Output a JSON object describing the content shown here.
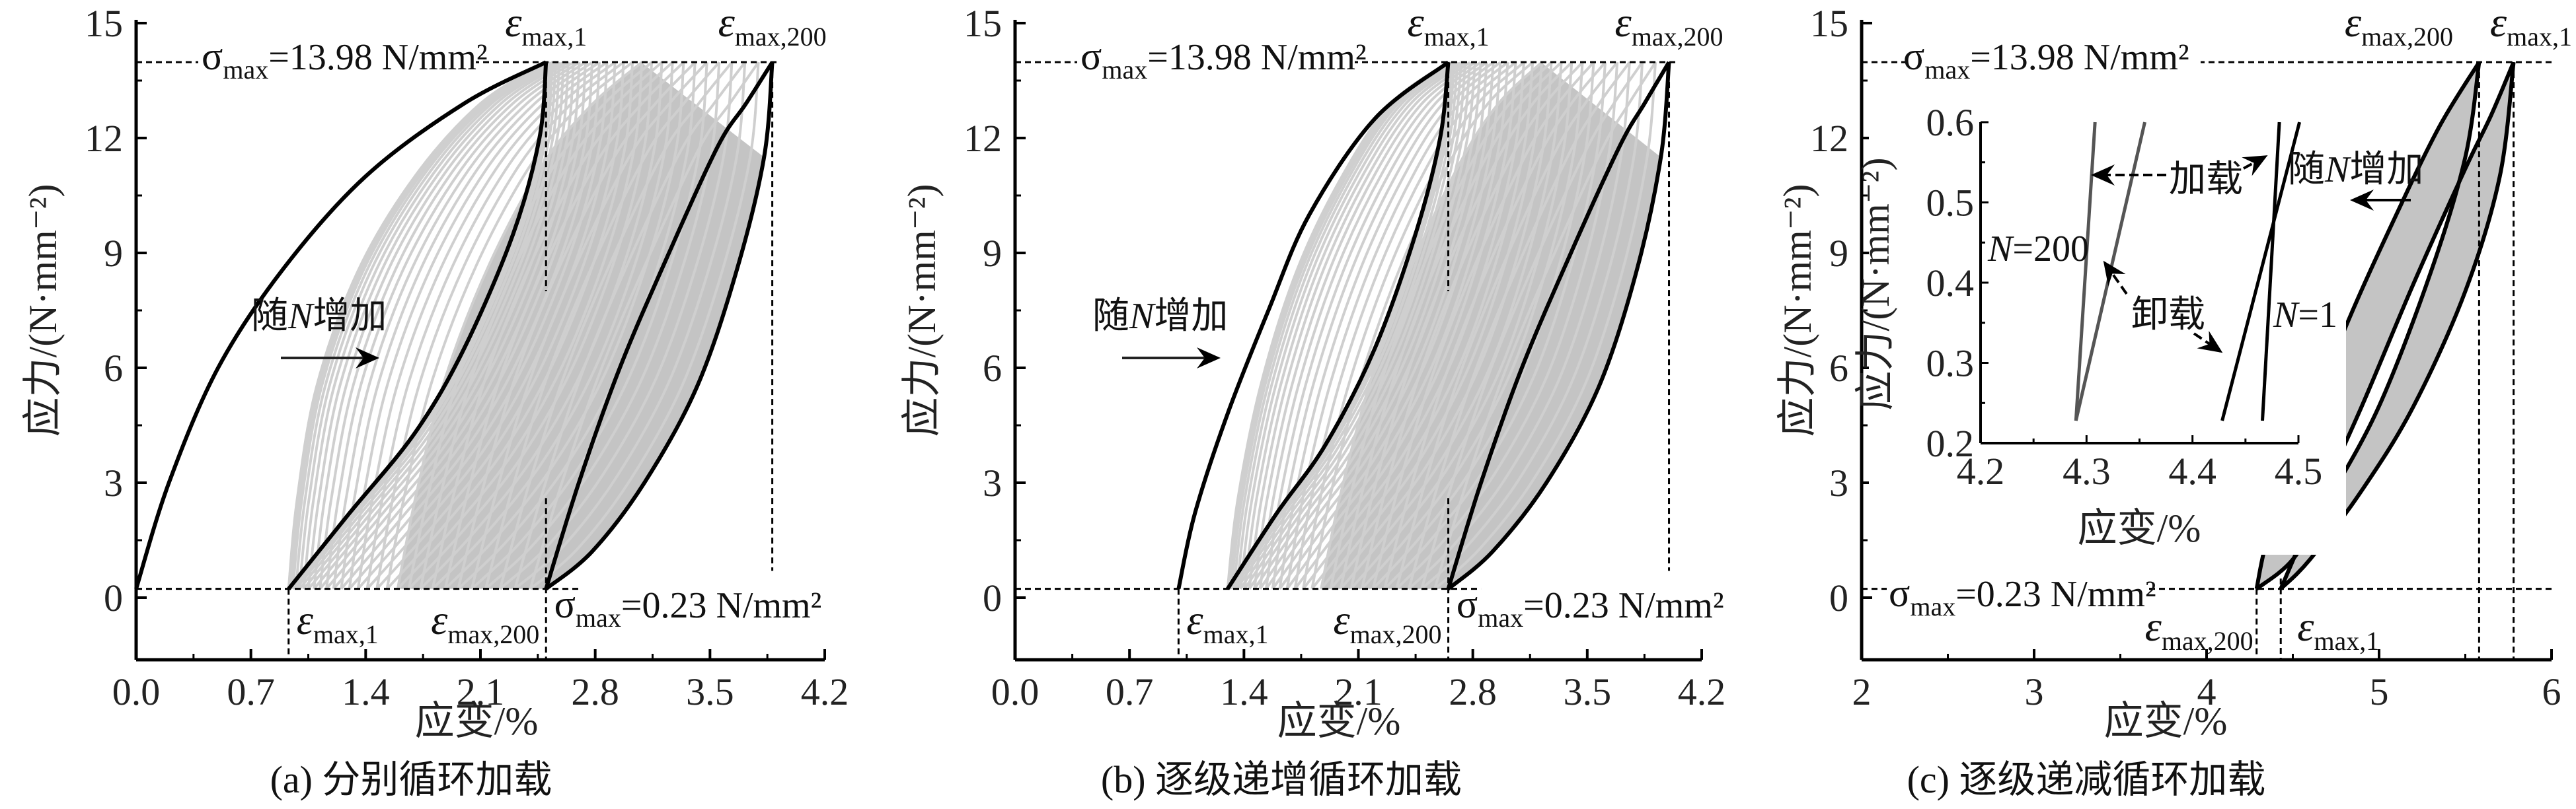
{
  "chart_data": [
    {
      "type": "line",
      "id": "a",
      "caption": "(a) 分别循环加载",
      "xlabel": "应变/%",
      "ylabel": "应力/(N·mm⁻²)",
      "xlim": [
        0,
        4.2
      ],
      "ylim": [
        -1.6,
        15
      ],
      "xticks": [
        "0.0",
        "0.7",
        "1.4",
        "2.1",
        "2.8",
        "3.5",
        "4.2"
      ],
      "yticks": [
        "0",
        "3",
        "6",
        "9",
        "12",
        "15"
      ],
      "sigma_top": {
        "sym": "σ",
        "sub": "max",
        "text": "=13.98 N/mm²",
        "value": 13.98
      },
      "sigma_bottom": {
        "sym": "σ",
        "sub": "max",
        "text": "=0.23 N/mm²",
        "value": 0.23
      },
      "eps_labels": [
        {
          "sym": "ε",
          "sub": "max,1"
        },
        {
          "sym": "ε",
          "sub": "max,200"
        },
        {
          "sym": "ε",
          "sub": "max,1"
        },
        {
          "sym": "ε",
          "sub": "max,200"
        }
      ],
      "arrow_text": {
        "pre": "随",
        "n": "N",
        "post": "增加"
      },
      "cycles": 200,
      "series": [
        {
          "name": "load_N1",
          "points": [
            [
              0,
              0.23
            ],
            [
              0.2,
              3
            ],
            [
              0.5,
              6
            ],
            [
              0.9,
              8.6
            ],
            [
              1.4,
              11
            ],
            [
              2.0,
              12.9
            ],
            [
              2.5,
              13.98
            ]
          ]
        },
        {
          "name": "unload_N1",
          "points": [
            [
              2.5,
              13.98
            ],
            [
              2.46,
              12
            ],
            [
              2.3,
              9.5
            ],
            [
              2.0,
              6.5
            ],
            [
              1.7,
              4.3
            ],
            [
              1.3,
              2.2
            ],
            [
              0.93,
              0.23
            ]
          ]
        },
        {
          "name": "reload_N2",
          "points": [
            [
              0.93,
              0.23
            ],
            [
              0.98,
              2.5
            ],
            [
              1.1,
              5.5
            ],
            [
              1.35,
              8.5
            ],
            [
              1.7,
              11
            ],
            [
              2.1,
              12.9
            ],
            [
              2.5,
              13.98
            ]
          ]
        },
        {
          "name": "load_N200",
          "points": [
            [
              2.5,
              0.23
            ],
            [
              2.7,
              3
            ],
            [
              2.95,
              6
            ],
            [
              3.25,
              9
            ],
            [
              3.55,
              11.8
            ],
            [
              3.72,
              12.9
            ],
            [
              3.88,
              13.98
            ]
          ]
        },
        {
          "name": "unload_N200",
          "points": [
            [
              3.88,
              13.98
            ],
            [
              3.83,
              11.5
            ],
            [
              3.66,
              8.5
            ],
            [
              3.42,
              5.5
            ],
            [
              3.1,
              3
            ],
            [
              2.78,
              1.2
            ],
            [
              2.5,
              0.23
            ]
          ]
        }
      ],
      "eps_max_1": [
        0.93,
        2.5
      ],
      "eps_max_200": [
        2.5,
        3.88
      ]
    },
    {
      "type": "line",
      "id": "b",
      "caption": "(b) 逐级递增循环加载",
      "xlabel": "应变/%",
      "ylabel": "应力/(N·mm⁻²)",
      "xlim": [
        0,
        4.2
      ],
      "ylim": [
        -1.6,
        15
      ],
      "xticks": [
        "0.0",
        "0.7",
        "1.4",
        "2.1",
        "2.8",
        "3.5",
        "4.2"
      ],
      "yticks": [
        "0",
        "3",
        "6",
        "9",
        "12",
        "15"
      ],
      "sigma_top": {
        "sym": "σ",
        "sub": "max",
        "text": "=13.98 N/mm²",
        "value": 13.98
      },
      "sigma_bottom": {
        "sym": "σ",
        "sub": "max",
        "text": "=0.23 N/mm²",
        "value": 0.23
      },
      "eps_labels": [
        {
          "sym": "ε",
          "sub": "max,1"
        },
        {
          "sym": "ε",
          "sub": "max,200"
        },
        {
          "sym": "ε",
          "sub": "max,1"
        },
        {
          "sym": "ε",
          "sub": "max,200"
        }
      ],
      "arrow_text": {
        "pre": "随",
        "n": "N",
        "post": "增加"
      },
      "cycles": 200,
      "series": [
        {
          "name": "load_N1",
          "points": [
            [
              1.0,
              0.23
            ],
            [
              1.1,
              2.2
            ],
            [
              1.3,
              4.8
            ],
            [
              1.55,
              7.5
            ],
            [
              1.8,
              10
            ],
            [
              2.2,
              12.5
            ],
            [
              2.65,
              13.98
            ]
          ]
        },
        {
          "name": "unload_N1",
          "points": [
            [
              2.65,
              13.98
            ],
            [
              2.6,
              12
            ],
            [
              2.45,
              9.5
            ],
            [
              2.2,
              6.5
            ],
            [
              1.9,
              4
            ],
            [
              1.6,
              2.2
            ],
            [
              1.3,
              0.23
            ]
          ]
        },
        {
          "name": "reload_N2",
          "points": [
            [
              1.3,
              0.23
            ],
            [
              1.36,
              2.5
            ],
            [
              1.5,
              5.5
            ],
            [
              1.72,
              8.5
            ],
            [
              2.0,
              11
            ],
            [
              2.3,
              12.9
            ],
            [
              2.65,
              13.98
            ]
          ]
        },
        {
          "name": "load_N200",
          "points": [
            [
              2.65,
              0.23
            ],
            [
              2.85,
              3
            ],
            [
              3.1,
              6
            ],
            [
              3.4,
              9
            ],
            [
              3.7,
              11.8
            ],
            [
              3.85,
              12.9
            ],
            [
              4.0,
              13.98
            ]
          ]
        },
        {
          "name": "unload_N200",
          "points": [
            [
              4.0,
              13.98
            ],
            [
              3.95,
              11.5
            ],
            [
              3.8,
              8.5
            ],
            [
              3.57,
              5.5
            ],
            [
              3.25,
              3
            ],
            [
              2.92,
              1.2
            ],
            [
              2.65,
              0.23
            ]
          ]
        }
      ],
      "eps_max_1": [
        1.0,
        2.65
      ],
      "eps_max_200": [
        2.65,
        4.0
      ]
    },
    {
      "type": "line",
      "id": "c",
      "caption": "(c) 逐级递减循环加载",
      "xlabel": "应变/%",
      "ylabel": "应力/(N·mm⁻²)",
      "xlim": [
        2,
        6
      ],
      "ylim": [
        -1.6,
        15
      ],
      "xticks": [
        "2",
        "3",
        "4",
        "5",
        "6"
      ],
      "yticks": [
        "0",
        "3",
        "6",
        "9",
        "12",
        "15"
      ],
      "sigma_top": {
        "sym": "σ",
        "sub": "max",
        "text": "=13.98 N/mm²",
        "value": 13.98
      },
      "sigma_bottom": {
        "sym": "σ",
        "sub": "max",
        "text": "=0.23 N/mm²",
        "value": 0.23
      },
      "eps_labels": [
        {
          "sym": "ε",
          "sub": "max,200"
        },
        {
          "sym": "ε",
          "sub": "max,1"
        },
        {
          "sym": "ε",
          "sub": "max,200"
        },
        {
          "sym": "ε",
          "sub": "max,1"
        }
      ],
      "arrow_text": {
        "pre": "随",
        "n": "N",
        "post": "增加"
      },
      "series": [
        {
          "name": "load_N1",
          "points": [
            [
              4.43,
              0.23
            ],
            [
              4.6,
              2
            ],
            [
              4.9,
              5
            ],
            [
              5.2,
              8.2
            ],
            [
              5.5,
              11.2
            ],
            [
              5.65,
              12.6
            ],
            [
              5.78,
              13.98
            ]
          ]
        },
        {
          "name": "unload_N1",
          "points": [
            [
              5.78,
              13.98
            ],
            [
              5.7,
              11
            ],
            [
              5.5,
              8
            ],
            [
              5.2,
              5
            ],
            [
              4.9,
              2.8
            ],
            [
              4.6,
              1
            ],
            [
              4.43,
              0.23
            ]
          ]
        },
        {
          "name": "load_N200",
          "points": [
            [
              4.29,
              0.23
            ],
            [
              4.35,
              1.5
            ],
            [
              4.5,
              3.5
            ],
            [
              4.8,
              7
            ],
            [
              5.1,
              10
            ],
            [
              5.35,
              12.3
            ],
            [
              5.58,
              13.98
            ]
          ]
        },
        {
          "name": "unload_N200",
          "points": [
            [
              5.58,
              13.98
            ],
            [
              5.5,
              11.5
            ],
            [
              5.3,
              8.5
            ],
            [
              5.0,
              5
            ],
            [
              4.7,
              2.5
            ],
            [
              4.5,
              1
            ],
            [
              4.29,
              0.23
            ]
          ]
        }
      ],
      "eps_max_1": [
        4.43,
        5.78
      ],
      "eps_max_200": [
        4.29,
        5.58
      ],
      "inset": {
        "xlabel": "应变/%",
        "ylabel": "应力/(N·mm⁻²)",
        "xlim": [
          4.2,
          4.5
        ],
        "ylim": [
          0.2,
          0.6
        ],
        "xticks": [
          "4.2",
          "4.3",
          "4.4",
          "4.5"
        ],
        "yticks": [
          "0.2",
          "0.3",
          "0.4",
          "0.5",
          "0.6"
        ],
        "series": [
          {
            "name": "N200_load",
            "color": "#555555",
            "points": [
              [
                4.29,
                0.228
              ],
              [
                4.308,
                0.6
              ]
            ]
          },
          {
            "name": "N200_unload",
            "color": "#555555",
            "points": [
              [
                4.29,
                0.228
              ],
              [
                4.355,
                0.6
              ]
            ]
          },
          {
            "name": "N1_unload",
            "color": "#000000",
            "points": [
              [
                4.428,
                0.228
              ],
              [
                4.501,
                0.6
              ]
            ]
          },
          {
            "name": "N1_load",
            "color": "#000000",
            "points": [
              [
                4.466,
                0.228
              ],
              [
                4.482,
                0.6
              ]
            ]
          }
        ],
        "label_load": "加载",
        "label_unload": "卸载",
        "label_n200": {
          "n": "N",
          "text": "=200"
        },
        "label_n1": {
          "n": "N",
          "text": "=1"
        }
      }
    }
  ]
}
